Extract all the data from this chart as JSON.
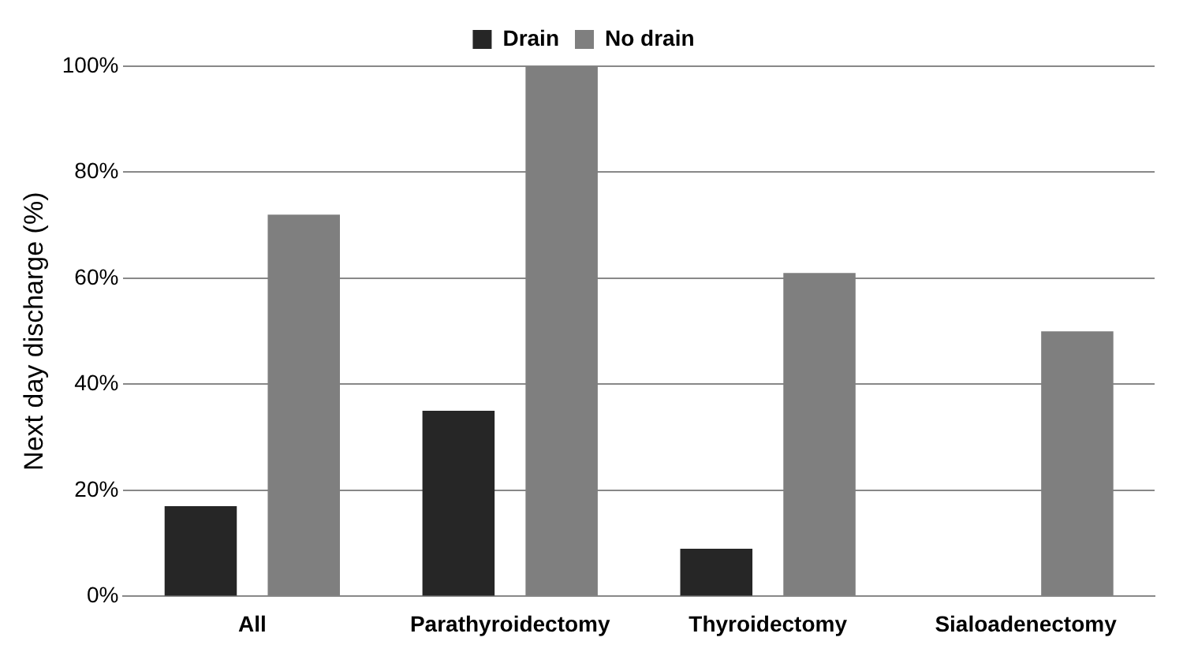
{
  "chart_data": {
    "type": "bar",
    "ylabel": "Next day discharge (%)",
    "categories": [
      "All",
      "Parathyroidectomy",
      "Thyroidectomy",
      "Sialoadenectomy"
    ],
    "series": [
      {
        "name": "Drain",
        "color": "#262626",
        "values": [
          17,
          35,
          9,
          0
        ]
      },
      {
        "name": "No drain",
        "color": "#7f7f7f",
        "values": [
          72,
          100,
          61,
          50
        ]
      }
    ],
    "ylim": [
      0,
      100
    ],
    "yticks": [
      {
        "value": 0,
        "label": "0%"
      },
      {
        "value": 20,
        "label": "20%"
      },
      {
        "value": 40,
        "label": "40%"
      },
      {
        "value": 60,
        "label": "60%"
      },
      {
        "value": 80,
        "label": "80%"
      },
      {
        "value": 100,
        "label": "100%"
      }
    ],
    "grid": "y",
    "legend": "top"
  }
}
